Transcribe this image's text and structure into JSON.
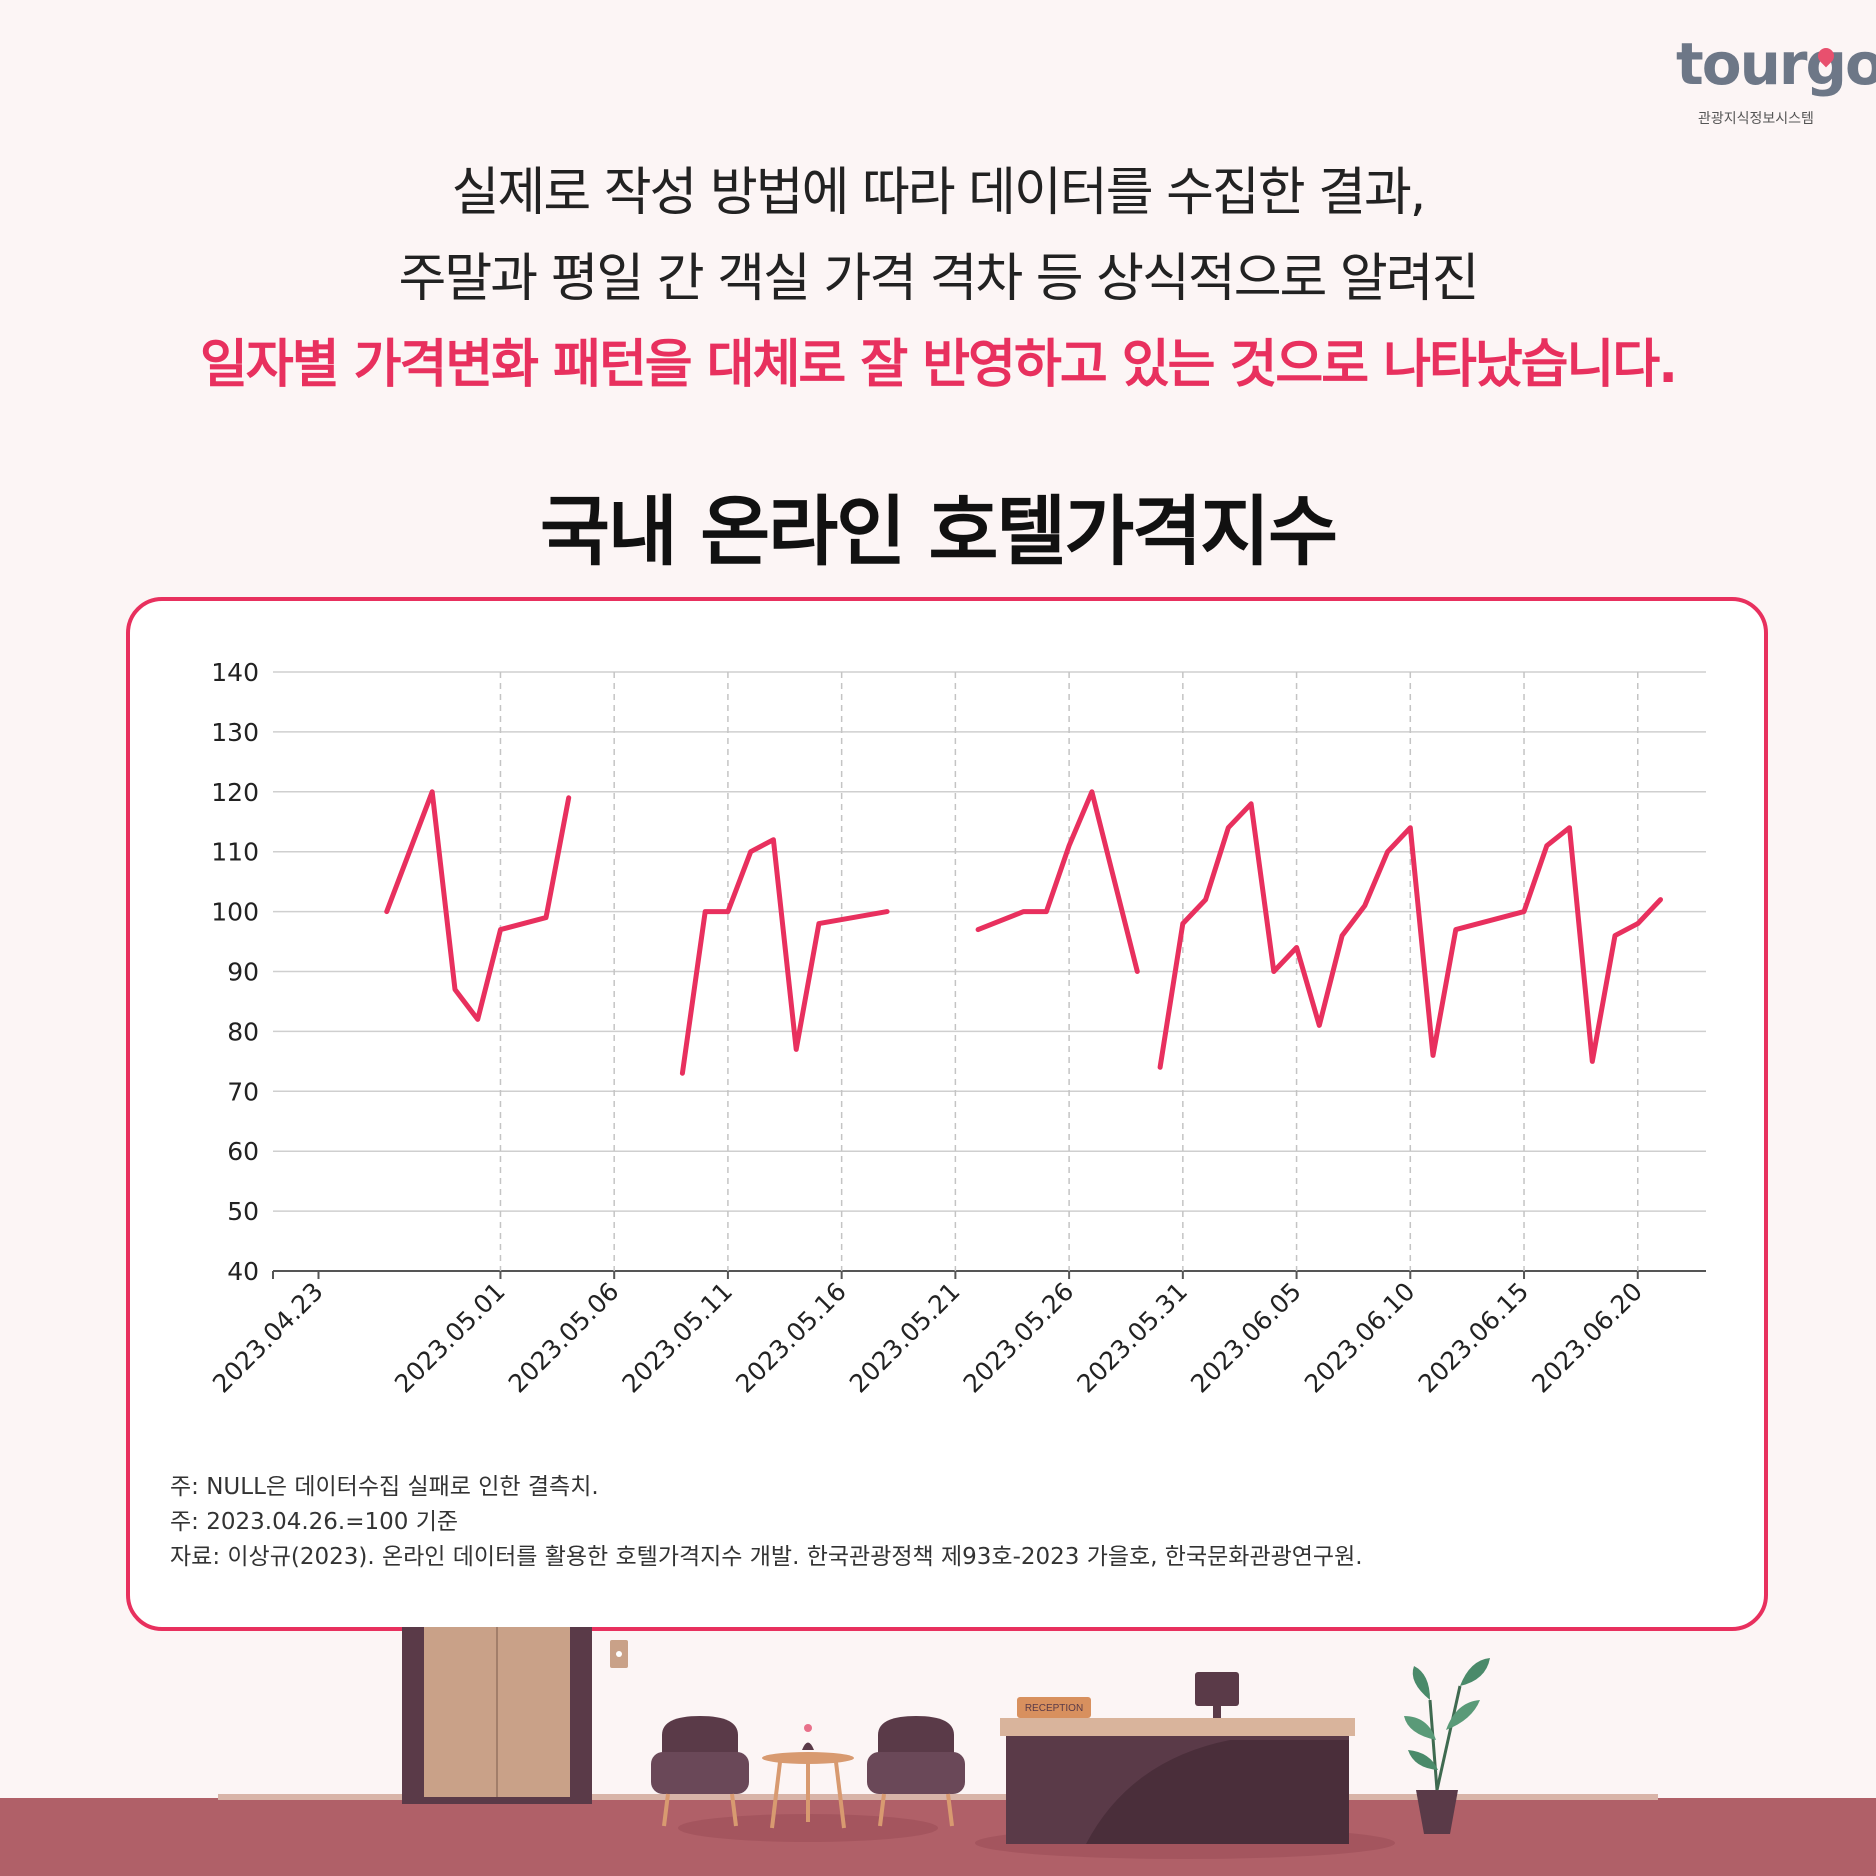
{
  "logo": {
    "wordmark": "tourgo",
    "subtitle": "관광지식정보시스템"
  },
  "headline": {
    "line1": "실제로 작성 방법에 따라 데이터를 수집한 결과,",
    "line2": "주말과 평일 간 객실 가격 격차 등 상식적으로 알려진",
    "line3": "일자별 가격변화 패턴을 대체로 잘 반영하고 있는 것으로 나타났습니다."
  },
  "colors": {
    "accent": "#e8305e",
    "background": "#fcf5f5"
  },
  "chart_data": {
    "type": "line",
    "title": "국내 온라인 호텔가격지수",
    "xlabel": "",
    "ylabel": "",
    "ylim": [
      40,
      140
    ],
    "yticks": [
      40,
      50,
      60,
      70,
      80,
      90,
      100,
      110,
      120,
      130,
      140
    ],
    "xlim": [
      "2023.04.21",
      "2023.06.23"
    ],
    "xticks": [
      "2023.04.23",
      "2023.05.01",
      "2023.05.06",
      "2023.05.11",
      "2023.05.16",
      "2023.05.21",
      "2023.05.26",
      "2023.05.31",
      "2023.06.05",
      "2023.06.10",
      "2023.06.15",
      "2023.06.20"
    ],
    "grid": true,
    "legend": "none",
    "series": [
      {
        "color": "#e8305e",
        "segments": [
          [
            [
              "2023.04.26",
              100
            ],
            [
              "2023.04.28",
              120
            ],
            [
              "2023.04.29",
              87
            ],
            [
              "2023.04.30",
              82
            ],
            [
              "2023.05.01",
              97
            ],
            [
              "2023.05.03",
              99
            ],
            [
              "2023.05.04",
              119
            ]
          ],
          [
            [
              "2023.05.09",
              73
            ],
            [
              "2023.05.10",
              100
            ],
            [
              "2023.05.11",
              100
            ],
            [
              "2023.05.12",
              110
            ],
            [
              "2023.05.13",
              112
            ],
            [
              "2023.05.14",
              77
            ],
            [
              "2023.05.15",
              98
            ],
            [
              "2023.05.18",
              100
            ]
          ],
          [
            [
              "2023.05.22",
              97
            ],
            [
              "2023.05.24",
              100
            ],
            [
              "2023.05.25",
              100
            ],
            [
              "2023.05.26",
              111
            ],
            [
              "2023.05.27",
              120
            ],
            [
              "2023.05.29",
              90
            ]
          ],
          [
            [
              "2023.05.30",
              74
            ],
            [
              "2023.05.31",
              98
            ],
            [
              "2023.06.01",
              102
            ],
            [
              "2023.06.02",
              114
            ],
            [
              "2023.06.03",
              118
            ],
            [
              "2023.06.04",
              90
            ],
            [
              "2023.06.05",
              94
            ],
            [
              "2023.06.06",
              81
            ],
            [
              "2023.06.07",
              96
            ],
            [
              "2023.06.08",
              101
            ],
            [
              "2023.06.09",
              110
            ],
            [
              "2023.06.10",
              114
            ],
            [
              "2023.06.11",
              76
            ],
            [
              "2023.06.12",
              97
            ],
            [
              "2023.06.15",
              100
            ],
            [
              "2023.06.16",
              111
            ],
            [
              "2023.06.17",
              114
            ],
            [
              "2023.06.18",
              75
            ],
            [
              "2023.06.19",
              96
            ],
            [
              "2023.06.20",
              98
            ],
            [
              "2023.06.21",
              102
            ]
          ]
        ]
      }
    ]
  },
  "notes": {
    "line1": "주: NULL은 데이터수집 실패로 인한 결측치.",
    "line2": "주: 2023.04.26.=100 기준",
    "line3": "자료: 이상규(2023). 온라인 데이터를 활용한 호텔가격지수 개발. 한국관광정책 제93호-2023 가을호, 한국문화관광연구원."
  },
  "scene": {
    "reception_sign": "RECEPTION"
  }
}
